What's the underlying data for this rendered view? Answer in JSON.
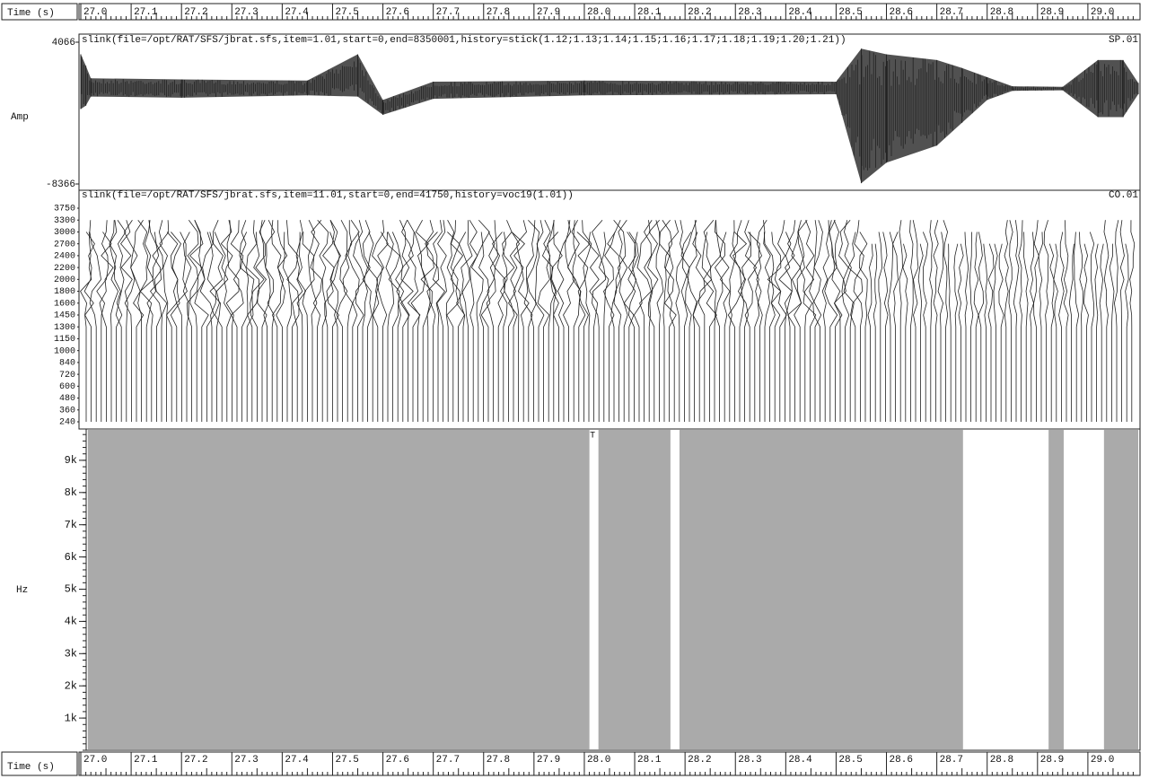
{
  "time_axis": {
    "label": "Time (s)",
    "xlim": [
      27.0,
      29.1
    ],
    "ticks": [
      {
        "value": 27.0,
        "label": "27.0"
      },
      {
        "value": 27.1,
        "label": "27.1"
      },
      {
        "value": 27.2,
        "label": "27.2"
      },
      {
        "value": 27.3,
        "label": "27.3"
      },
      {
        "value": 27.4,
        "label": "27.4"
      },
      {
        "value": 27.5,
        "label": "27.5"
      },
      {
        "value": 27.6,
        "label": "27.6"
      },
      {
        "value": 27.7,
        "label": "27.7"
      },
      {
        "value": 27.8,
        "label": "27.8"
      },
      {
        "value": 27.9,
        "label": "27.9"
      },
      {
        "value": 28.0,
        "label": "28.0"
      },
      {
        "value": 28.1,
        "label": "28.1"
      },
      {
        "value": 28.2,
        "label": "28.2"
      },
      {
        "value": 28.3,
        "label": "28.3"
      },
      {
        "value": 28.4,
        "label": "28.4"
      },
      {
        "value": 28.5,
        "label": "28.5"
      },
      {
        "value": 28.6,
        "label": "28.6"
      },
      {
        "value": 28.7,
        "label": "28.7"
      },
      {
        "value": 28.8,
        "label": "28.8"
      },
      {
        "value": 28.9,
        "label": "28.9"
      },
      {
        "value": 29.0,
        "label": "29.0"
      }
    ]
  },
  "waveform": {
    "title": "slink(file=/opt/RAT/SFS/jbrat.sfs,item=1.01,start=0,end=8350001,history=stick(1.12;1.13;1.14;1.15;1.16;1.17;1.18;1.19;1.20;1.21))",
    "channel": "SP.01",
    "ylabel": "Amp",
    "ylim": [
      -8366,
      4066
    ],
    "yticks": [
      4066,
      -8366
    ],
    "envelope": {
      "t": [
        27.0,
        27.01,
        27.02,
        27.2,
        27.45,
        27.55,
        27.6,
        27.7,
        28.0,
        28.5,
        28.55,
        28.6,
        28.7,
        28.75,
        28.8,
        28.85,
        28.95,
        29.02,
        29.07,
        29.1
      ],
      "max": [
        3000,
        2000,
        900,
        800,
        700,
        3000,
        -1000,
        600,
        700,
        600,
        3500,
        3000,
        2500,
        1800,
        1000,
        200,
        150,
        2500,
        2500,
        500
      ],
      "min": [
        -1800,
        -1500,
        -700,
        -800,
        -600,
        -700,
        -2300,
        -900,
        -600,
        -500,
        -8300,
        -6500,
        -5000,
        -3000,
        -1000,
        -200,
        -150,
        -2500,
        -2500,
        -500
      ]
    }
  },
  "vocoder": {
    "title": "slink(file=/opt/RAT/SFS/jbrat.sfs,item=11.01,start=0,end=41750,history=voc19(1.01))",
    "channel": "CO.01",
    "channels": [
      3750,
      3300,
      3000,
      2700,
      2400,
      2200,
      2000,
      1800,
      1600,
      1450,
      1300,
      1150,
      1000,
      840,
      720,
      600,
      480,
      360,
      240
    ]
  },
  "spectrogram": {
    "ylabel": "Hz",
    "ylim": [
      0,
      10000
    ],
    "yticks": [
      {
        "value": 1000,
        "label": "1k"
      },
      {
        "value": 2000,
        "label": "2k"
      },
      {
        "value": 3000,
        "label": "3k"
      },
      {
        "value": 4000,
        "label": "4k"
      },
      {
        "value": 5000,
        "label": "5k"
      },
      {
        "value": 6000,
        "label": "6k"
      },
      {
        "value": 7000,
        "label": "7k"
      },
      {
        "value": 8000,
        "label": "8k"
      },
      {
        "value": 9000,
        "label": "9k"
      }
    ],
    "regions": [
      {
        "start": 27.014,
        "end": 28.011
      },
      {
        "start": 28.028,
        "end": 28.171
      },
      {
        "start": 28.189,
        "end": 28.752
      },
      {
        "start": 28.922,
        "end": 28.952
      },
      {
        "start": 29.032,
        "end": 29.1
      }
    ],
    "marker": {
      "label": "T",
      "time": 28.011
    }
  }
}
